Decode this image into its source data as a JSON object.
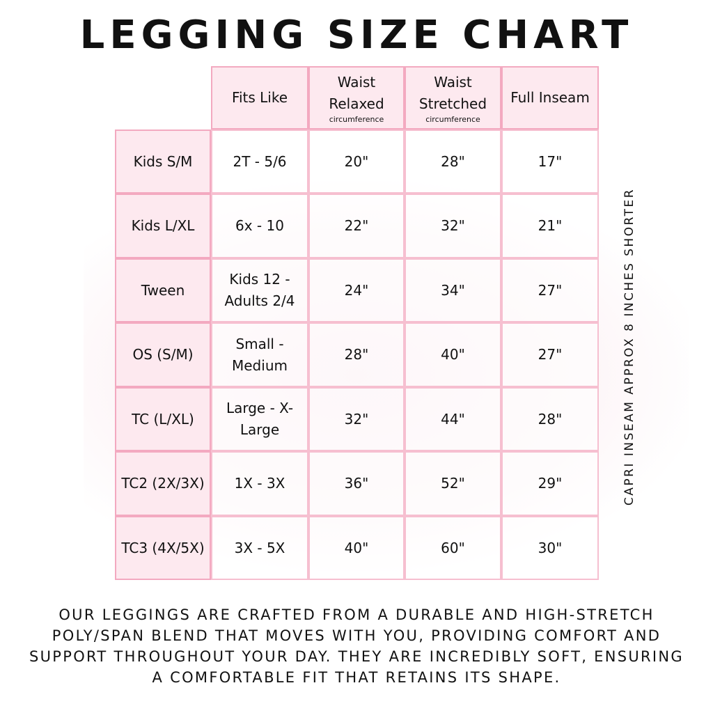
{
  "title": "LEGGING SIZE CHART",
  "table": {
    "headers": [
      {
        "label": "Fits Like",
        "sub": ""
      },
      {
        "label": "Waist Relaxed",
        "sub": "circumference"
      },
      {
        "label": "Waist Stretched",
        "sub": "circumference"
      },
      {
        "label": "Full Inseam",
        "sub": ""
      }
    ],
    "rows": [
      {
        "size": "Kids S/M",
        "fits": "2T - 5/6",
        "relaxed": "20\"",
        "stretched": "28\"",
        "inseam": "17\""
      },
      {
        "size": "Kids L/XL",
        "fits": "6x - 10",
        "relaxed": "22\"",
        "stretched": "32\"",
        "inseam": "21\""
      },
      {
        "size": "Tween",
        "fits": "Kids 12 - Adults 2/4",
        "relaxed": "24\"",
        "stretched": "34\"",
        "inseam": "27\""
      },
      {
        "size": "OS (S/M)",
        "fits": "Small - Medium",
        "relaxed": "28\"",
        "stretched": "40\"",
        "inseam": "27\""
      },
      {
        "size": "TC (L/XL)",
        "fits": "Large - X-Large",
        "relaxed": "32\"",
        "stretched": "44\"",
        "inseam": "28\""
      },
      {
        "size": "TC2 (2X/3X)",
        "fits": "1X - 3X",
        "relaxed": "36\"",
        "stretched": "52\"",
        "inseam": "29\""
      },
      {
        "size": "TC3 (4X/5X)",
        "fits": "3X - 5X",
        "relaxed": "40\"",
        "stretched": "60\"",
        "inseam": "30\""
      }
    ]
  },
  "side_note": "CAPRI INSEAM APPROX 8 INCHES SHORTER",
  "footer": "OUR LEGGINGS ARE CRAFTED FROM A DURABLE AND HIGH-STRETCH POLY/SPAN BLEND THAT MOVES WITH YOU, PROVIDING COMFORT AND SUPPORT THROUGHOUT YOUR DAY. THEY ARE INCREDIBLY SOFT, ENSURING A COMFORTABLE FIT THAT RETAINS ITS SHAPE.",
  "colors": {
    "header_bg": "#fde9ef",
    "border": "#f3a9c0"
  }
}
